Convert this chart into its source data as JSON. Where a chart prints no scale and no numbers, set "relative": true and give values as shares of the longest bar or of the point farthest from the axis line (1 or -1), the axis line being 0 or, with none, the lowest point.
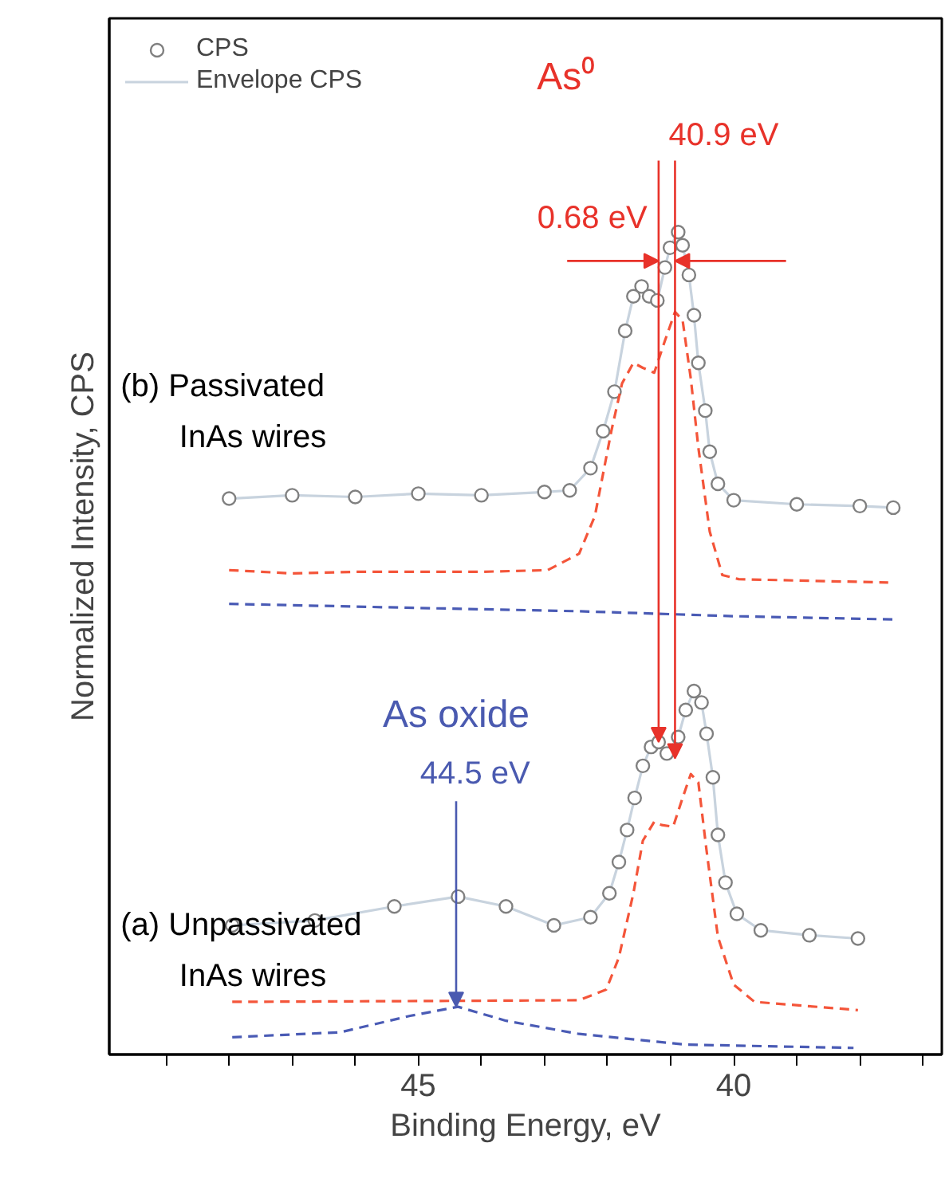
{
  "chart_data": {
    "type": "scatter",
    "relative": true,
    "xlabel": "Binding Energy, eV",
    "ylabel": "Normalized Intensity, CPS",
    "xlim": [
      49.9,
      36.7
    ],
    "xticks": [
      {
        "value": 49,
        "label": null
      },
      {
        "value": 48,
        "label": null
      },
      {
        "value": 47,
        "label": null
      },
      {
        "value": 46,
        "label": null
      },
      45,
      {
        "value": 44,
        "label": null
      },
      {
        "value": 43,
        "label": null
      },
      {
        "value": 42,
        "label": null
      },
      {
        "value": 41,
        "label": null
      },
      40,
      {
        "value": 39,
        "label": null
      },
      {
        "value": 38,
        "label": null
      },
      {
        "value": 37,
        "label": null
      }
    ],
    "grid": false,
    "legend": "top left",
    "annotations": [
      "As⁰",
      "0.68 eV",
      {
        "text": "40.9 eV",
        "x": 40.93,
        "y": 0.36
      },
      "As oxide",
      {
        "text": "44.5 eV",
        "x": 44.4,
        "y": 0.058
      },
      "(b) Passivated\nInAs wires",
      "(a) Unpassivated\nInAs wires"
    ],
    "series": [
      {
        "name": "Envelope CPS",
        "type": "line",
        "color": "#c8d3de",
        "x": [
          48.0,
          47.0,
          46.0,
          45.0,
          44.0,
          43.0,
          42.6,
          42.27,
          42.07,
          41.89,
          41.72,
          41.59,
          41.46,
          41.34,
          41.21,
          41.09,
          41.01,
          40.88,
          40.81,
          40.71,
          40.63,
          40.56,
          40.45,
          40.38,
          40.25,
          40.0,
          39.0,
          38.0,
          37.47
        ],
        "values": [
          0.676,
          0.68,
          0.678,
          0.682,
          0.68,
          0.684,
          0.686,
          0.713,
          0.758,
          0.806,
          0.88,
          0.922,
          0.934,
          0.922,
          0.917,
          0.957,
          0.981,
          1.0,
          0.984,
          0.948,
          0.899,
          0.841,
          0.783,
          0.733,
          0.694,
          0.674,
          0.669,
          0.667,
          0.665
        ]
      },
      {
        "name": "CPS",
        "marker": "circle",
        "color": "#808080",
        "x": [
          48.0,
          47.0,
          46.0,
          45.0,
          44.0,
          43.0,
          42.6,
          42.27,
          42.07,
          41.89,
          41.72,
          41.59,
          41.46,
          41.34,
          41.21,
          41.09,
          41.01,
          40.88,
          40.81,
          40.71,
          40.63,
          40.56,
          40.45,
          40.38,
          40.25,
          40.0,
          39.0,
          38.0,
          37.47
        ],
        "values": [
          0.676,
          0.68,
          0.678,
          0.682,
          0.68,
          0.684,
          0.686,
          0.713,
          0.758,
          0.806,
          0.88,
          0.922,
          0.934,
          0.922,
          0.917,
          0.957,
          0.981,
          1.0,
          0.984,
          0.948,
          0.899,
          0.841,
          0.783,
          0.733,
          0.694,
          0.674,
          0.669,
          0.667,
          0.665
        ]
      },
      {
        "type": "line",
        "line_style": "dashed",
        "color": "#f4553a",
        "x": [
          48.0,
          47.0,
          46.0,
          45.0,
          44.0,
          42.95,
          42.45,
          42.2,
          41.94,
          41.77,
          41.59,
          41.44,
          41.26,
          41.09,
          40.93,
          40.81,
          40.68,
          40.56,
          40.38,
          40.18,
          39.92,
          38.8,
          37.55
        ],
        "values": [
          0.589,
          0.585,
          0.587,
          0.587,
          0.587,
          0.589,
          0.609,
          0.655,
          0.758,
          0.816,
          0.841,
          0.835,
          0.829,
          0.868,
          0.903,
          0.893,
          0.822,
          0.738,
          0.636,
          0.583,
          0.578,
          0.576,
          0.574
        ]
      },
      {
        "type": "line",
        "line_style": "dashed",
        "color": "#4a5bb5",
        "x": [
          48.0,
          45.0,
          42.45,
          40.0,
          37.47
        ],
        "values": [
          0.548,
          0.543,
          0.539,
          0.533,
          0.529
        ]
      },
      {
        "type": "line",
        "color": "#c8d3de",
        "x": [
          47.95,
          46.64,
          45.38,
          44.37,
          43.61,
          42.85,
          42.27,
          41.97,
          41.82,
          41.69,
          41.57,
          41.44,
          41.31,
          41.19,
          41.06,
          40.88,
          40.76,
          40.63,
          40.51,
          40.43,
          40.33,
          40.25,
          40.13,
          39.95,
          39.57,
          38.8,
          38.03
        ],
        "values": [
          0.157,
          0.163,
          0.18,
          0.192,
          0.18,
          0.157,
          0.167,
          0.196,
          0.234,
          0.273,
          0.312,
          0.351,
          0.374,
          0.38,
          0.366,
          0.386,
          0.419,
          0.442,
          0.428,
          0.39,
          0.337,
          0.267,
          0.209,
          0.171,
          0.151,
          0.145,
          0.141
        ]
      },
      {
        "marker": "circle",
        "color": "#808080",
        "x": [
          47.95,
          46.64,
          45.38,
          44.37,
          43.61,
          42.85,
          42.27,
          41.97,
          41.82,
          41.69,
          41.57,
          41.44,
          41.31,
          41.19,
          41.06,
          40.88,
          40.76,
          40.63,
          40.51,
          40.43,
          40.33,
          40.25,
          40.13,
          39.95,
          39.57,
          38.8,
          38.03
        ],
        "values": [
          0.157,
          0.163,
          0.18,
          0.192,
          0.18,
          0.157,
          0.167,
          0.196,
          0.234,
          0.273,
          0.312,
          0.351,
          0.374,
          0.38,
          0.366,
          0.386,
          0.419,
          0.442,
          0.428,
          0.39,
          0.337,
          0.267,
          0.209,
          0.171,
          0.151,
          0.145,
          0.141
        ]
      },
      {
        "type": "line",
        "line_style": "dashed",
        "color": "#f4553a",
        "x": [
          47.95,
          45.0,
          42.45,
          42.02,
          41.82,
          41.59,
          41.44,
          41.26,
          41.14,
          40.96,
          40.81,
          40.68,
          40.56,
          40.43,
          40.25,
          40.0,
          39.67,
          38.03
        ],
        "values": [
          0.064,
          0.065,
          0.066,
          0.079,
          0.118,
          0.196,
          0.26,
          0.283,
          0.279,
          0.277,
          0.312,
          0.341,
          0.331,
          0.248,
          0.143,
          0.085,
          0.064,
          0.054
        ]
      },
      {
        "type": "line",
        "line_style": "dashed",
        "color": "#4a5bb5",
        "x": [
          47.95,
          46.24,
          45.13,
          44.37,
          43.61,
          42.45,
          40.76,
          38.1
        ],
        "values": [
          0.021,
          0.027,
          0.047,
          0.058,
          0.041,
          0.025,
          0.012,
          0.008
        ]
      }
    ]
  }
}
